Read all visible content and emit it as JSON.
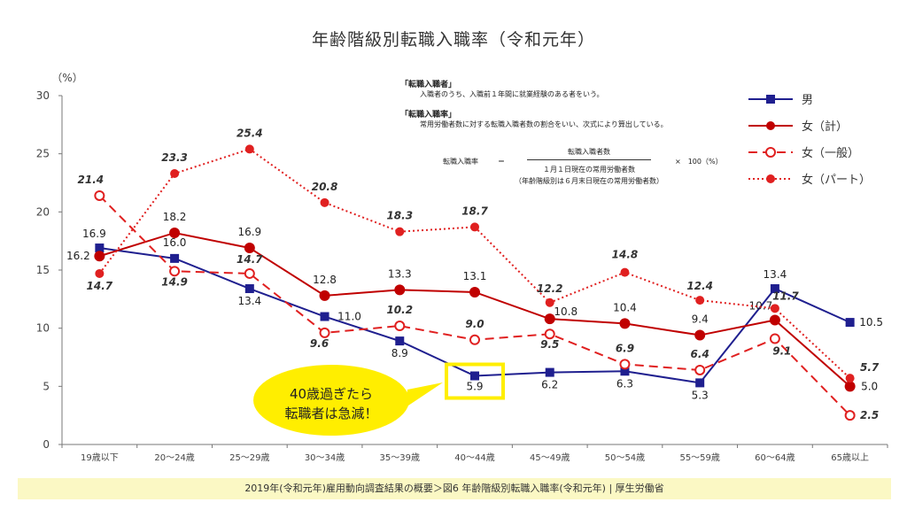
{
  "chart_data": {
    "type": "line",
    "title": "年齢階級別転職入職率（令和元年）",
    "ylabel": "（%）",
    "ylim": [
      0,
      30
    ],
    "yticks": [
      0,
      5,
      10,
      15,
      20,
      25,
      30
    ],
    "grid": false,
    "legend_position": "top-right",
    "categories": [
      "19歳以下",
      "20～24歳",
      "25～29歳",
      "30～34歳",
      "35～39歳",
      "40～44歳",
      "45～49歳",
      "50～54歳",
      "55～59歳",
      "60～64歳",
      "65歳以上"
    ],
    "series": [
      {
        "name": "男",
        "style": "solid-square",
        "color": "#1f1f8f",
        "label_color": "#222222",
        "values": [
          16.9,
          16.0,
          13.4,
          11.0,
          8.9,
          5.9,
          6.2,
          6.3,
          5.3,
          13.4,
          10.5
        ],
        "labels": [
          "16.9",
          "16.0",
          "13.4",
          "11.0",
          "8.9",
          "5.9",
          "6.2",
          "6.3",
          "5.3",
          "13.4",
          "10.5"
        ]
      },
      {
        "name": "女（計）",
        "style": "solid-circle",
        "color": "#c00000",
        "label_color": "#222222",
        "values": [
          16.2,
          18.2,
          16.9,
          12.8,
          13.3,
          13.1,
          10.8,
          10.4,
          9.4,
          10.7,
          5.0
        ],
        "labels": [
          "16.2",
          "18.2",
          "16.9",
          "12.8",
          "13.3",
          "13.1",
          "10.8",
          "10.4",
          "9.4",
          "10.7",
          "5.0"
        ]
      },
      {
        "name": "女（一般）",
        "style": "dashed-open-circle",
        "color": "#e02020",
        "label_color": "#333333",
        "values": [
          21.4,
          14.9,
          14.7,
          9.6,
          10.2,
          9.0,
          9.5,
          6.9,
          6.4,
          9.1,
          2.5
        ],
        "labels": [
          "21.4",
          "14.9",
          "14.7",
          "9.6",
          "10.2",
          "9.0",
          "9.5",
          "6.9",
          "6.4",
          "9.1",
          "2.5"
        ]
      },
      {
        "name": "女（パート）",
        "style": "dotted-circle",
        "color": "#e02020",
        "label_color": "#333333",
        "values": [
          14.7,
          23.3,
          25.4,
          20.8,
          18.3,
          18.7,
          12.2,
          14.8,
          12.4,
          11.7,
          5.7
        ],
        "labels": [
          "14.7",
          "23.3",
          "25.4",
          "20.8",
          "18.3",
          "18.7",
          "12.2",
          "14.8",
          "12.4",
          "11.7",
          "5.7"
        ]
      }
    ],
    "highlight_color": "#ffee00"
  },
  "definitions": [
    {
      "heading": "「転職入職者」",
      "text": "入職者のうち、入職前１年間に就業経験のある者をいう。"
    },
    {
      "heading": "「転職入職率」",
      "text": "常用労働者数に対する転職入職者数の割合をいい、次式により算出している。"
    }
  ],
  "formula": {
    "lhs": "転職入職率",
    "eq": "＝",
    "numerator": "転職入職者数",
    "denominator": "１月１日現在の常用労働者数",
    "denominator_note": "（年齢階級別は６月末日現在の常用労働者数）",
    "multiplier": "×　100（%）"
  },
  "callout": {
    "line1": "40歳過ぎたら",
    "line2": "転職者は急減！",
    "color": "#ffee00"
  },
  "footer": "2019年(令和元年)雇用動向調査結果の概要＞図6 年齢階級別転職入職率(令和元年) | 厚生労働省"
}
